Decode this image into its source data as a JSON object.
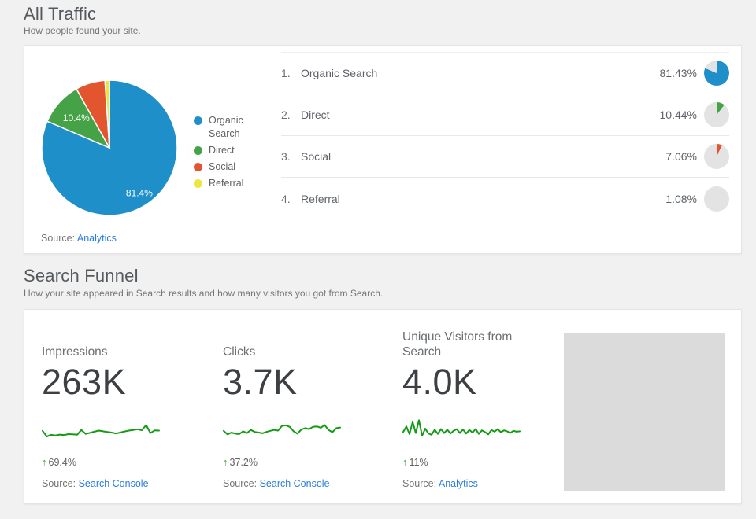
{
  "colors": {
    "link_blue": "#2a7de1",
    "spark_green": "#149a14",
    "delta_green": "#3fa33f",
    "minipie_rest": "#e3e3e3"
  },
  "all_traffic": {
    "title": "All Traffic",
    "subtitle": "How people found your site.",
    "source_label": "Source:",
    "source_link": "Analytics",
    "rows": [
      {
        "rank": "1.",
        "label": "Organic Search",
        "pct": "81.43%"
      },
      {
        "rank": "2.",
        "label": "Direct",
        "pct": "10.44%"
      },
      {
        "rank": "3.",
        "label": "Social",
        "pct": "7.06%"
      },
      {
        "rank": "4.",
        "label": "Referral",
        "pct": "1.08%"
      }
    ]
  },
  "search_funnel": {
    "title": "Search Funnel",
    "subtitle": "How your site appeared in Search results and how many visitors you got from Search.",
    "delta_arrow": "↑",
    "metrics": [
      {
        "label": "Impressions",
        "value": "263K",
        "delta": "69.4%",
        "source_label": "Source:",
        "source_link": "Search Console"
      },
      {
        "label": "Clicks",
        "value": "3.7K",
        "delta": "37.2%",
        "source_label": "Source:",
        "source_link": "Search Console"
      },
      {
        "label": "Unique Visitors from Search",
        "value": "4.0K",
        "delta": "11%",
        "source_label": "Source:",
        "source_link": "Analytics"
      }
    ]
  },
  "chart_data": [
    {
      "type": "pie",
      "title": "All Traffic — How people found your site",
      "labels": [
        "Organic Search",
        "Direct",
        "Social",
        "Referral"
      ],
      "values": [
        81.43,
        10.44,
        7.06,
        1.08
      ],
      "colors": [
        "#1e8fc9",
        "#46a246",
        "#e2552f",
        "#ece73e"
      ],
      "inner_labels": [
        "81.4%",
        "10.4%"
      ],
      "inner_label_min_pct": 10,
      "inner_label_radius": [
        0.8,
        0.66
      ],
      "legend_position": "right",
      "start_angle_deg": 0,
      "direction": "clockwise"
    },
    {
      "type": "line",
      "name": "Impressions trend",
      "value": "263K",
      "delta_pct": 69.4,
      "values": [
        40,
        14,
        22,
        19,
        23,
        21,
        25,
        24,
        22,
        44,
        26,
        31,
        36,
        41,
        38,
        35,
        32,
        28,
        32,
        37,
        41,
        44,
        47,
        43,
        66,
        30,
        42,
        41
      ]
    },
    {
      "type": "line",
      "name": "Clicks trend",
      "value": "3.7K",
      "delta_pct": 37.2,
      "values": [
        40,
        24,
        32,
        27,
        25,
        38,
        30,
        44,
        35,
        32,
        29,
        35,
        40,
        44,
        41,
        62,
        65,
        58,
        38,
        27,
        46,
        52,
        48,
        58,
        60,
        54,
        66,
        44,
        34,
        52,
        55
      ]
    },
    {
      "type": "line",
      "name": "Unique Visitors from Search trend",
      "value": "4.0K",
      "delta_pct": 11,
      "values": [
        35,
        60,
        25,
        80,
        30,
        88,
        18,
        50,
        28,
        22,
        45,
        26,
        48,
        30,
        45,
        28,
        40,
        48,
        30,
        46,
        28,
        44,
        32,
        48,
        26,
        42,
        34,
        24,
        44,
        36,
        48,
        34,
        42,
        38,
        30,
        40,
        36,
        38
      ]
    }
  ]
}
